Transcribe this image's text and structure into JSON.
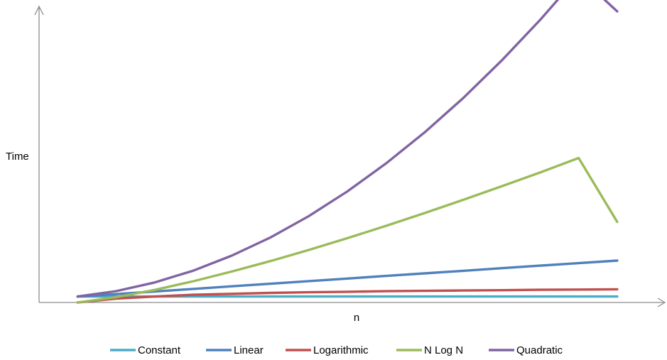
{
  "chart_data": {
    "type": "line",
    "title": "",
    "xlabel": "n",
    "ylabel": "Time",
    "grid": false,
    "legend_position": "bottom",
    "x": [
      1,
      2,
      3,
      4,
      5,
      6,
      7,
      8,
      9,
      10,
      11,
      12,
      13,
      14,
      15
    ],
    "xlim": [
      0,
      16.2
    ],
    "ylim": [
      0,
      225
    ],
    "series": [
      {
        "name": "Constant",
        "color": "#4bacc6",
        "values": [
          4.6,
          4.6,
          4.6,
          4.6,
          4.6,
          4.6,
          4.6,
          4.6,
          4.6,
          4.6,
          4.6,
          4.6,
          4.6,
          4.6,
          4.6
        ]
      },
      {
        "name": "Linear",
        "color": "#4f81bd",
        "values": [
          4.6,
          6.5,
          8.5,
          10.5,
          12.5,
          14.5,
          16.5,
          18.5,
          20.5,
          22.5,
          24.5,
          26.5,
          28.5,
          30.4,
          32.4
        ]
      },
      {
        "name": "Logarithmic",
        "color": "#c0504d",
        "values": [
          0,
          3.0,
          4.6,
          6.0,
          6.7,
          7.4,
          7.9,
          8.3,
          8.7,
          9.0,
          9.3,
          9.5,
          9.8,
          10.0,
          10.2
        ]
      },
      {
        "name": "N Log N",
        "color": "#9bbb59",
        "values": [
          0,
          4.1,
          9.7,
          16.4,
          23.9,
          32.0,
          40.6,
          49.7,
          59.2,
          69.1,
          79.3,
          89.8,
          100.5,
          111.7,
          62.3
        ]
      },
      {
        "name": "Quadratic",
        "color": "#8064a2",
        "values": [
          4.6,
          8.8,
          15.5,
          24.6,
          36.2,
          50.2,
          66.8,
          85.9,
          107.4,
          131.4,
          157.9,
          186.9,
          218.4,
          252.4,
          225.0
        ]
      }
    ]
  }
}
